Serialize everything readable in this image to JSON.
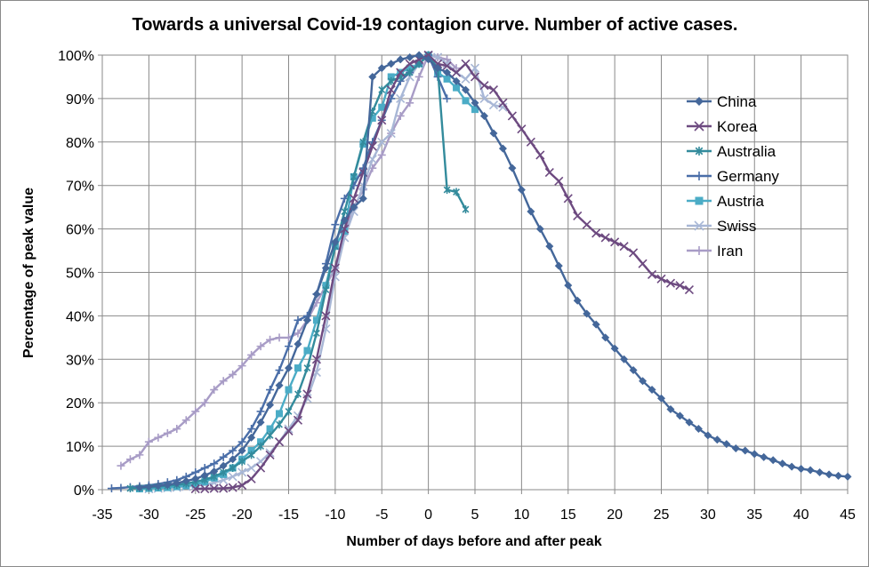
{
  "chart_data": {
    "type": "line",
    "title": "Towards a universal Covid-19 contagion curve. Number of active cases.",
    "xlabel": "Number of days before and after peak",
    "ylabel": "Percentage of peak value",
    "xlim": [
      -35,
      45
    ],
    "ylim": [
      0,
      100
    ],
    "x_ticks": [
      "-35",
      "-30",
      "-25",
      "-20",
      "-15",
      "-10",
      "-5",
      "0",
      "5",
      "10",
      "15",
      "20",
      "25",
      "30",
      "35",
      "40",
      "45"
    ],
    "y_ticks": [
      "0%",
      "10%",
      "20%",
      "30%",
      "40%",
      "50%",
      "60%",
      "70%",
      "80%",
      "90%",
      "100%"
    ],
    "grid": true,
    "legend_position": "right",
    "series": [
      {
        "name": "China",
        "color": "#44679a",
        "marker": "diamond",
        "x": [
          -31,
          -30,
          -29,
          -28,
          -27,
          -26,
          -25,
          -24,
          -23,
          -22,
          -21,
          -20,
          -19,
          -18,
          -17,
          -16,
          -15,
          -14,
          -13,
          -12,
          -11,
          -10,
          -9,
          -8,
          -7,
          -6,
          -5,
          -4,
          -3,
          -2,
          -1,
          0,
          1,
          2,
          3,
          4,
          5,
          6,
          7,
          8,
          9,
          10,
          11,
          12,
          13,
          14,
          15,
          16,
          17,
          18,
          19,
          20,
          21,
          22,
          23,
          24,
          25,
          26,
          27,
          28,
          29,
          30,
          31,
          32,
          33,
          34,
          35,
          36,
          37,
          38,
          39,
          40,
          41,
          42,
          43,
          44,
          45
        ],
        "y": [
          0.5,
          0.7,
          0.9,
          1.1,
          1.5,
          2,
          2.5,
          3.3,
          4.2,
          5.5,
          7,
          9,
          12,
          15.5,
          19.5,
          24,
          28,
          33.5,
          39,
          45,
          51,
          57,
          62,
          65,
          67,
          95,
          97,
          98,
          99,
          99.5,
          100,
          99,
          97,
          96,
          94,
          92,
          89,
          86,
          82,
          78.5,
          74,
          69,
          64,
          60,
          56,
          51.5,
          47,
          43.5,
          40.5,
          38,
          35,
          32.5,
          30,
          27.5,
          25,
          23,
          21,
          18.5,
          17,
          15.5,
          14,
          12.5,
          11.5,
          10.5,
          9.5,
          9,
          8.2,
          7.5,
          6.8,
          6,
          5.3,
          4.8,
          4.5,
          4,
          3.5,
          3.2,
          3
        ]
      },
      {
        "name": "Korea",
        "color": "#6d4a80",
        "marker": "x",
        "x": [
          -25,
          -24,
          -23,
          -22,
          -21,
          -20,
          -19,
          -18,
          -17,
          -16,
          -15,
          -14,
          -13,
          -12,
          -11,
          -10,
          -9,
          -8,
          -7,
          -6,
          -5,
          -4,
          -3,
          -2,
          -1,
          0,
          1,
          2,
          3,
          4,
          5,
          6,
          7,
          8,
          9,
          10,
          11,
          12,
          13,
          14,
          15,
          16,
          17,
          18,
          19,
          20,
          21,
          22,
          23,
          24,
          25,
          26,
          27,
          28
        ],
        "y": [
          0.2,
          0.2,
          0.3,
          0.3,
          0.5,
          1,
          2.5,
          5,
          8,
          11,
          13.5,
          16,
          22,
          30,
          40,
          51,
          60,
          67,
          73,
          79,
          85,
          92,
          96,
          98,
          99,
          100,
          98,
          97.5,
          96,
          98,
          95,
          93,
          92,
          89,
          86,
          83,
          80,
          77,
          73,
          71,
          67,
          63,
          61,
          59,
          58,
          57,
          56,
          54.5,
          52,
          49.5,
          48.5,
          47.5,
          47,
          46
        ]
      },
      {
        "name": "Australia",
        "color": "#338b9c",
        "marker": "asterisk",
        "x": [
          -32,
          -31,
          -30,
          -29,
          -28,
          -27,
          -26,
          -25,
          -24,
          -23,
          -22,
          -21,
          -20,
          -19,
          -18,
          -17,
          -16,
          -15,
          -14,
          -13,
          -12,
          -11,
          -10,
          -9,
          -8,
          -7,
          -6,
          -5,
          -4,
          -3,
          -2,
          -1,
          0,
          1,
          2,
          3,
          4
        ],
        "y": [
          0.3,
          0.4,
          0.5,
          0.7,
          0.9,
          1.1,
          1.4,
          1.8,
          2.3,
          3,
          4,
          5,
          6.5,
          8,
          10,
          12.5,
          15,
          18,
          22,
          28,
          36,
          46,
          56,
          64,
          72,
          80,
          87,
          92,
          94,
          95,
          96,
          98,
          100,
          97,
          69,
          68.5,
          64.5
        ]
      },
      {
        "name": "Germany",
        "color": "#4a6ea8",
        "marker": "plus",
        "x": [
          -34,
          -33,
          -32,
          -31,
          -30,
          -29,
          -28,
          -27,
          -26,
          -25,
          -24,
          -23,
          -22,
          -21,
          -20,
          -19,
          -18,
          -17,
          -16,
          -15,
          -14,
          -13,
          -12,
          -11,
          -10,
          -9,
          -8,
          -7,
          -6,
          -5,
          -4,
          -3,
          -2,
          -1,
          0,
          1,
          2
        ],
        "y": [
          0.3,
          0.4,
          0.6,
          0.8,
          1,
          1.3,
          1.7,
          2.2,
          3,
          4,
          5,
          6,
          7.5,
          9,
          11,
          14,
          18,
          23,
          27.5,
          33,
          39,
          40,
          45,
          52,
          61,
          67,
          70,
          74,
          80,
          85,
          90,
          94,
          96,
          98,
          100,
          95,
          90
        ]
      },
      {
        "name": "Austria",
        "color": "#4bacc6",
        "marker": "square",
        "x": [
          -31,
          -30,
          -29,
          -28,
          -27,
          -26,
          -25,
          -24,
          -23,
          -22,
          -21,
          -20,
          -19,
          -18,
          -17,
          -16,
          -15,
          -14,
          -13,
          -12,
          -11,
          -10,
          -9,
          -8,
          -7,
          -6,
          -5,
          -4,
          -3,
          -2,
          -1,
          0,
          1,
          2,
          3,
          4,
          5
        ],
        "y": [
          0.2,
          0.3,
          0.4,
          0.5,
          0.7,
          0.9,
          1.2,
          1.8,
          2.7,
          3.5,
          5,
          7,
          9,
          11,
          14,
          17.5,
          23,
          28,
          32,
          39,
          47,
          56,
          59.5,
          72,
          79.5,
          85.5,
          88,
          95,
          96,
          97,
          98,
          100,
          96,
          94.5,
          92.5,
          89.5,
          87.5
        ]
      },
      {
        "name": "Swiss",
        "color": "#a8b7d6",
        "marker": "x",
        "x": [
          -30,
          -29,
          -28,
          -27,
          -26,
          -25,
          -24,
          -23,
          -22,
          -21,
          -20,
          -19,
          -18,
          -17,
          -16,
          -15,
          -14,
          -13,
          -12,
          -11,
          -10,
          -9,
          -8,
          -7,
          -6,
          -5,
          -4,
          -3,
          -2,
          -1,
          0,
          1,
          2,
          3,
          4,
          5,
          6,
          7,
          8
        ],
        "y": [
          0.2,
          0.3,
          0.4,
          0.5,
          0.7,
          0.9,
          1.2,
          1.6,
          2.2,
          3,
          4,
          5,
          6.5,
          8.5,
          11,
          14,
          17,
          21,
          27,
          37,
          49,
          58,
          64,
          70,
          76,
          80,
          82,
          90,
          95,
          98,
          100,
          99.5,
          98,
          96,
          94.5,
          97,
          90,
          88.5,
          88
        ]
      },
      {
        "name": "Iran",
        "color": "#a89cc6",
        "marker": "plus",
        "x": [
          -33,
          -32,
          -31,
          -30,
          -29,
          -28,
          -27,
          -26,
          -25,
          -24,
          -23,
          -22,
          -21,
          -20,
          -19,
          -18,
          -17,
          -16,
          -15,
          -14,
          -13,
          -12,
          -11,
          -10,
          -9,
          -8,
          -7,
          -6,
          -5,
          -4,
          -3,
          -2,
          -1,
          0,
          1,
          2,
          3
        ],
        "y": [
          5.5,
          7,
          8,
          11,
          12,
          13,
          14,
          16,
          18,
          20,
          23,
          25,
          26.5,
          28.5,
          31,
          33,
          34.5,
          35,
          35,
          36,
          39,
          43,
          47,
          51,
          59,
          65,
          69,
          74,
          77,
          82,
          86,
          89,
          95,
          100,
          99.5,
          99,
          97
        ]
      }
    ]
  }
}
